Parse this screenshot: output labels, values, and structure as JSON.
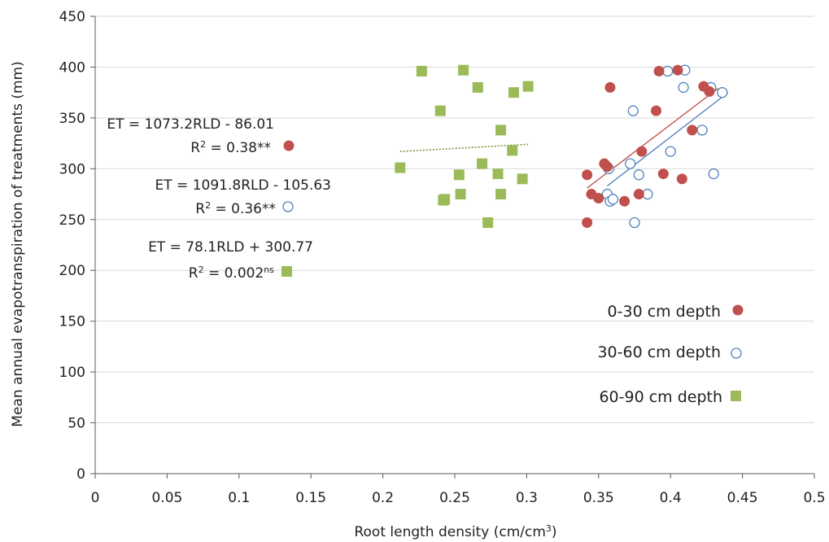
{
  "chart_data": {
    "type": "scatter",
    "xlabel": "Root length density (cm/cm",
    "xlabel_sup": "3",
    "xlabel_end": ")",
    "ylabel": "Mean annual evapotranspiration of treatments (mm)",
    "xlim": [
      0,
      0.5
    ],
    "ylim": [
      0,
      450
    ],
    "x_ticks": [
      0,
      0.05,
      0.1,
      0.15,
      0.2,
      0.25,
      0.3,
      0.35,
      0.4,
      0.45,
      0.5
    ],
    "x_tick_labels": [
      "0",
      "0.05",
      "0.1",
      "0.15",
      "0.2",
      "0.25",
      "0.3",
      "0.35",
      "0.4",
      "0.45",
      "0.5"
    ],
    "y_ticks": [
      0,
      50,
      100,
      150,
      200,
      250,
      300,
      350,
      400,
      450
    ],
    "y_tick_labels": [
      "0",
      "50",
      "100",
      "150",
      "200",
      "250",
      "300",
      "350",
      "400",
      "450"
    ],
    "grid": "horizontal",
    "legend_position": "bottom-right",
    "series": [
      {
        "name": "0-30 cm depth",
        "marker": "filled-circle",
        "color": "#c0504d",
        "points": [
          [
            0.342,
            247
          ],
          [
            0.342,
            294
          ],
          [
            0.345,
            275
          ],
          [
            0.35,
            271
          ],
          [
            0.354,
            305
          ],
          [
            0.356,
            302
          ],
          [
            0.358,
            380
          ],
          [
            0.368,
            268
          ],
          [
            0.378,
            275
          ],
          [
            0.38,
            317
          ],
          [
            0.39,
            357
          ],
          [
            0.392,
            396
          ],
          [
            0.395,
            295
          ],
          [
            0.405,
            397
          ],
          [
            0.408,
            290
          ],
          [
            0.415,
            338
          ],
          [
            0.423,
            381
          ],
          [
            0.427,
            376
          ]
        ],
        "trendline": {
          "x": [
            0.342,
            0.433
          ],
          "y": [
            281,
            379
          ]
        }
      },
      {
        "name": "30-60 cm depth",
        "marker": "open-circle",
        "color": "#4f81bd",
        "points": [
          [
            0.356,
            275
          ],
          [
            0.357,
            300
          ],
          [
            0.358,
            268
          ],
          [
            0.36,
            270
          ],
          [
            0.372,
            305
          ],
          [
            0.374,
            357
          ],
          [
            0.375,
            247
          ],
          [
            0.378,
            294
          ],
          [
            0.384,
            275
          ],
          [
            0.398,
            396
          ],
          [
            0.4,
            317
          ],
          [
            0.409,
            380
          ],
          [
            0.41,
            397
          ],
          [
            0.422,
            338
          ],
          [
            0.428,
            380
          ],
          [
            0.43,
            295
          ],
          [
            0.436,
            375
          ]
        ],
        "trendline": {
          "x": [
            0.356,
            0.44
          ],
          "y": [
            283,
            375
          ]
        }
      },
      {
        "name": "60-90 cm depth",
        "marker": "filled-square",
        "color": "#9bbb59",
        "points": [
          [
            0.212,
            301
          ],
          [
            0.227,
            396
          ],
          [
            0.24,
            357
          ],
          [
            0.242,
            269
          ],
          [
            0.243,
            270
          ],
          [
            0.253,
            294
          ],
          [
            0.254,
            275
          ],
          [
            0.256,
            397
          ],
          [
            0.266,
            380
          ],
          [
            0.269,
            305
          ],
          [
            0.273,
            247
          ],
          [
            0.28,
            295
          ],
          [
            0.282,
            338
          ],
          [
            0.282,
            275
          ],
          [
            0.29,
            318
          ],
          [
            0.291,
            375
          ],
          [
            0.297,
            290
          ],
          [
            0.301,
            381
          ]
        ],
        "trendline": {
          "x": [
            0.212,
            0.301
          ],
          "y": [
            317,
            324
          ]
        }
      }
    ],
    "annotations": [
      {
        "equation": "ET = 1073.2RLD - 86.01",
        "r2_prefix": "R",
        "r2_exp": "2",
        "r2_value": " = 0.38**",
        "r2_sup": "",
        "marker": "filled-circle"
      },
      {
        "equation": "ET = 1091.8RLD - 105.63",
        "r2_prefix": "R",
        "r2_exp": "2",
        "r2_value": " = 0.36**",
        "r2_sup": "",
        "marker": "open-circle"
      },
      {
        "equation": "ET = 78.1RLD + 300.77",
        "r2_prefix": "R",
        "r2_exp": "2",
        "r2_value": " = 0.002",
        "r2_sup": "ns",
        "marker": "filled-square"
      }
    ]
  }
}
